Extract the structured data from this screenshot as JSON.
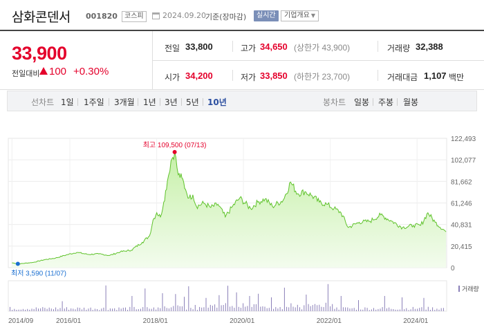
{
  "header": {
    "name": "삼화콘덴서",
    "code": "001820",
    "market": "코스피",
    "date": "2024.09.20",
    "basis": "기준(장마감)",
    "realtime_label": "실시간",
    "overview_label": "기업개요"
  },
  "price": {
    "current": "33,900",
    "change_label": "전일대비",
    "change": "100",
    "change_pct": "+0.30%"
  },
  "stats": {
    "prev_label": "전일",
    "prev_val": "33,800",
    "high_label": "고가",
    "high_val": "34,650",
    "upper_limit": "(상한가 43,900)",
    "volume_label": "거래량",
    "volume_val": "32,388",
    "open_label": "시가",
    "open_val": "34,200",
    "low_label": "저가",
    "low_val": "33,850",
    "lower_limit": "(하한가 23,700)",
    "amount_label": "거래대금",
    "amount_val": "1,107",
    "amount_unit": "백만"
  },
  "period_bar": {
    "line_label": "선차트",
    "line_periods": [
      "1일",
      "1주일",
      "3개월",
      "1년",
      "3년",
      "5년",
      "10년"
    ],
    "active": "10년",
    "candle_label": "봉차트",
    "candle_periods": [
      "일봉",
      "주봉",
      "월봉"
    ]
  },
  "colors": {
    "up": "#e4002b",
    "line": "#5ec22a",
    "area_top": "#c6f0a8",
    "area_bottom": "#f3fcee",
    "volume": "#8a7fb8",
    "low_marker": "#1a6fd1"
  },
  "chart_data": {
    "type": "area",
    "title": "",
    "ylabel": "",
    "xlabel": "",
    "y_ticks": [
      "122,493",
      "102,077",
      "81,662",
      "61,246",
      "40,831",
      "20,415",
      "0"
    ],
    "ylim": [
      0,
      122493
    ],
    "x_ticks": [
      "2014/09",
      "2016/01",
      "2018/01",
      "2020/01",
      "2022/01",
      "2024/01"
    ],
    "max_annotation": "최고 109,500 (07/13)",
    "min_annotation": "최저 3,590 (11/07)",
    "volume_legend": "거래량",
    "x": [
      "2014-09",
      "2014-11",
      "2015-03",
      "2015-06",
      "2015-09",
      "2015-12",
      "2016-03",
      "2016-06",
      "2016-09",
      "2016-12",
      "2017-03",
      "2017-06",
      "2017-09",
      "2017-11",
      "2017-12",
      "2018-01",
      "2018-02",
      "2018-03",
      "2018-04",
      "2018-05",
      "2018-06",
      "2018-07",
      "2018-08",
      "2018-09",
      "2018-10",
      "2018-11",
      "2018-12",
      "2019-02",
      "2019-04",
      "2019-06",
      "2019-08",
      "2019-10",
      "2019-12",
      "2020-03",
      "2020-05",
      "2020-07",
      "2020-09",
      "2020-12",
      "2021-02",
      "2021-04",
      "2021-06",
      "2021-08",
      "2021-10",
      "2021-12",
      "2022-02",
      "2022-04",
      "2022-06",
      "2022-09",
      "2022-12",
      "2023-03",
      "2023-06",
      "2023-09",
      "2023-12",
      "2024-02",
      "2024-04",
      "2024-06",
      "2024-09"
    ],
    "values": [
      4500,
      3590,
      5000,
      7500,
      9000,
      12000,
      14500,
      12500,
      13000,
      11500,
      15000,
      16500,
      24000,
      30000,
      45000,
      52000,
      48000,
      62000,
      82000,
      101000,
      109500,
      88000,
      85000,
      74000,
      66000,
      69000,
      58000,
      61000,
      57000,
      60000,
      48000,
      58000,
      66000,
      56000,
      62000,
      65000,
      58000,
      64000,
      81000,
      70000,
      72000,
      68000,
      62000,
      60000,
      56000,
      52000,
      38000,
      43000,
      44000,
      50000,
      44000,
      38000,
      40000,
      40000,
      52000,
      43000,
      33900
    ],
    "volume_bars": 200,
    "volume_spikes": [
      [
        0.12,
        0.36
      ],
      [
        0.22,
        0.93
      ],
      [
        0.28,
        0.55
      ],
      [
        0.31,
        0.82
      ],
      [
        0.35,
        0.65
      ],
      [
        0.38,
        0.62
      ],
      [
        0.4,
        0.52
      ],
      [
        0.41,
        0.9
      ],
      [
        0.45,
        0.48
      ],
      [
        0.48,
        0.58
      ],
      [
        0.5,
        0.92
      ],
      [
        0.52,
        0.68
      ],
      [
        0.55,
        0.55
      ],
      [
        0.57,
        0.63
      ],
      [
        0.6,
        0.5
      ],
      [
        0.63,
        0.85
      ],
      [
        0.68,
        0.6
      ],
      [
        0.73,
        0.98
      ],
      [
        0.76,
        0.55
      ],
      [
        0.8,
        0.4
      ],
      [
        0.86,
        0.55
      ],
      [
        0.9,
        0.5
      ],
      [
        0.95,
        0.48
      ]
    ]
  }
}
